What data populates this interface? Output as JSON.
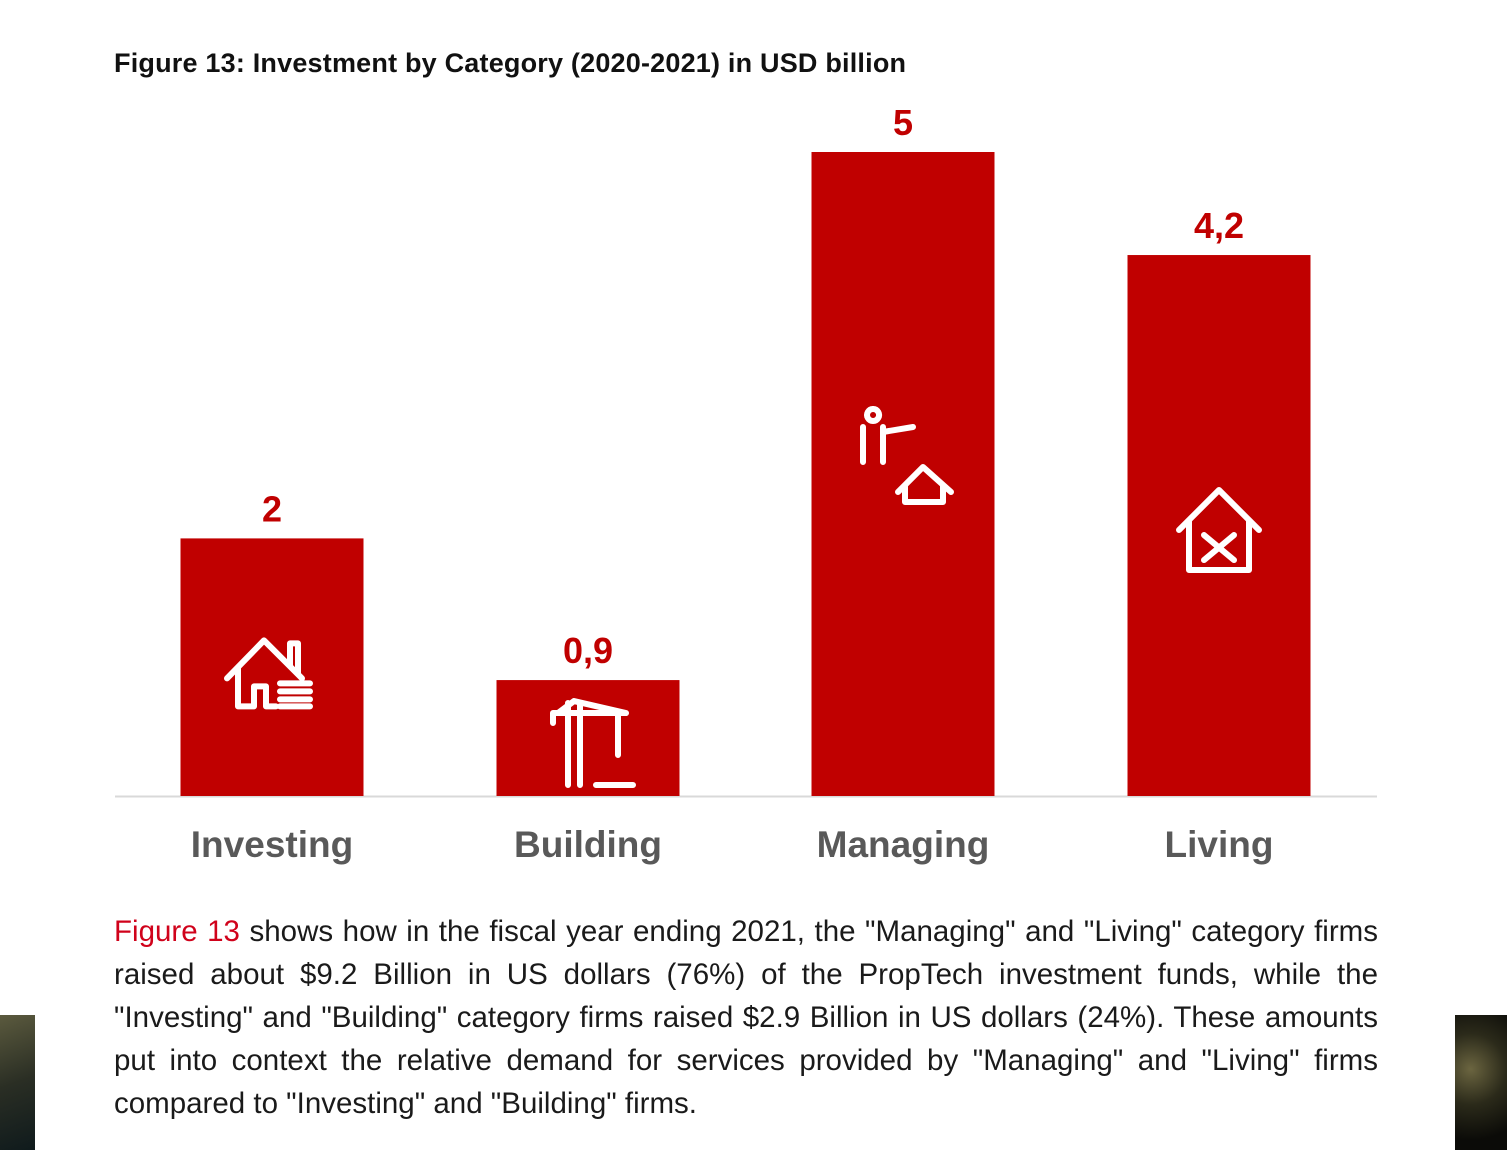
{
  "chart_data": {
    "type": "bar",
    "title": "Figure 13: Investment by Category (2020-2021) in USD billion",
    "categories": [
      "Investing",
      "Building",
      "Managing",
      "Living"
    ],
    "values": [
      2,
      0.9,
      5,
      4.2
    ],
    "data_labels": [
      "2",
      "0,9",
      "5",
      "4,2"
    ],
    "icons": [
      "house-coins-icon",
      "crane-icon",
      "agent-house-icon",
      "house-tools-icon"
    ],
    "xlabel": "",
    "ylabel": "",
    "ylim": [
      0,
      5
    ],
    "grid": false,
    "bar_color": "#c00000",
    "label_color": "#c00000",
    "category_color": "#595959"
  },
  "paragraph": {
    "ref": "Figure 13",
    "text": " shows how in the fiscal year ending 2021, the \"Managing\" and \"Living\" category firms raised about $9.2 Billion in US dollars (76%) of the PropTech investment funds, while the \"Investing\" and \"Building\" category firms raised $2.9 Billion in US dollars (24%). These amounts put into context the relative demand for services provided by \"Managing\" and \"Living\" firms compared to \"Investing\" and \"Building\" firms."
  }
}
